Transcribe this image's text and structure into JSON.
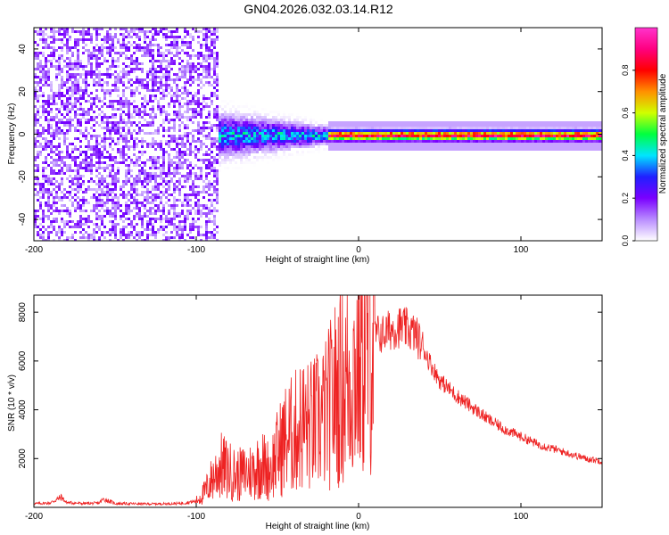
{
  "figure": {
    "title": "GN04.2026.032.03.14.R12"
  },
  "chart_data": [
    {
      "type": "heatmap",
      "title": "GN04.2026.032.03.14.R12",
      "xlabel": "Height of straight line (km)",
      "ylabel": "Frequency (Hz)",
      "xlim": [
        -200,
        150
      ],
      "ylim": [
        -50,
        50
      ],
      "xticks": [
        -200,
        -100,
        0,
        100
      ],
      "xtick_labels": [
        "-200",
        "-100",
        "0",
        "100"
      ],
      "yticks": [
        -40,
        -20,
        0,
        20,
        40
      ],
      "ytick_labels": [
        "-40",
        "-20",
        "0",
        "20",
        "40"
      ],
      "colorbar": {
        "label": "Normalized spectral amplitude",
        "range": [
          0,
          1
        ],
        "ticks": [
          0,
          0.2,
          0.4,
          0.6,
          0.8
        ],
        "tick_labels": [
          "0.0",
          "0.2",
          "0.4",
          "0.6",
          "0.8"
        ],
        "colors": [
          "#ffffff",
          "#b98cff",
          "#7a00ff",
          "#2020ff",
          "#00e5ff",
          "#00ff40",
          "#d0ff00",
          "#ff9000",
          "#ff0000",
          "#ff0080",
          "#ff33cc"
        ]
      },
      "regions": [
        {
          "x_range": [
            -200,
            -87
          ],
          "freq_half_width": 50,
          "typical_amplitude": 0.15,
          "description": "broad noise"
        },
        {
          "x_range": [
            -87,
            -20
          ],
          "freq_center": 0,
          "freq_half_width": 8,
          "typical_amplitude": 0.35
        },
        {
          "x_range": [
            -20,
            150
          ],
          "freq_center": 0,
          "freq_half_width": 2,
          "typical_amplitude": 0.9
        }
      ]
    },
    {
      "type": "line",
      "xlabel": "Height of straight line (km)",
      "ylabel": "SNR (10 * v/v)",
      "xlim": [
        -200,
        150
      ],
      "ylim": [
        0,
        8700
      ],
      "xticks": [
        -200,
        -100,
        0,
        100
      ],
      "xtick_labels": [
        "-200",
        "-100",
        "0",
        "100"
      ],
      "yticks": [
        2000,
        4000,
        6000,
        8000
      ],
      "ytick_labels": [
        "2000",
        "4000",
        "6000",
        "8000"
      ],
      "series": [
        {
          "name": "SNR",
          "color": "#ee2222",
          "x": [
            -200,
            -190,
            -183,
            -180,
            -170,
            -160,
            -157,
            -150,
            -140,
            -130,
            -120,
            -110,
            -100,
            -95,
            -90,
            -85,
            -80,
            -75,
            -70,
            -65,
            -60,
            -55,
            -50,
            -45,
            -40,
            -35,
            -30,
            -25,
            -20,
            -15,
            -10,
            -5,
            0,
            5,
            10,
            15,
            20,
            25,
            30,
            35,
            40,
            45,
            50,
            60,
            70,
            80,
            90,
            100,
            110,
            120,
            130,
            140,
            150
          ],
          "values": [
            150,
            180,
            420,
            200,
            160,
            170,
            340,
            160,
            150,
            140,
            150,
            160,
            250,
            600,
            1200,
            1700,
            1500,
            1300,
            1400,
            1500,
            1800,
            1500,
            2200,
            2800,
            3000,
            3400,
            3300,
            3500,
            3800,
            4600,
            5000,
            5300,
            5900,
            6600,
            7100,
            7100,
            7300,
            7400,
            7300,
            7100,
            6500,
            5800,
            5200,
            4600,
            4100,
            3600,
            3200,
            2900,
            2600,
            2400,
            2200,
            2000,
            1900
          ]
        }
      ]
    }
  ]
}
